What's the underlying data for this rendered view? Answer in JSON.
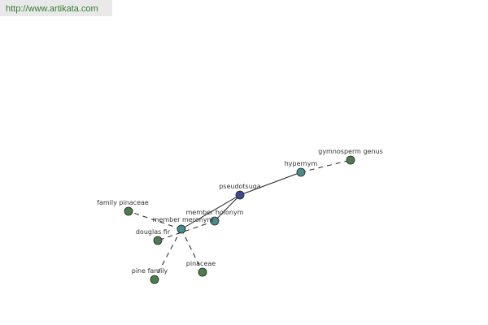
{
  "header": {
    "url": "http://www.artikata.com"
  },
  "nodes": [
    {
      "label": "pseudotsuga"
    },
    {
      "label": "hypernym"
    },
    {
      "label": "gymnosperm genus"
    },
    {
      "label": "member holonym"
    },
    {
      "label": "member meronym"
    },
    {
      "label": "family pinaceae"
    },
    {
      "label": "douglas fir"
    },
    {
      "label": "pine family"
    },
    {
      "label": "pinaceae"
    }
  ]
}
